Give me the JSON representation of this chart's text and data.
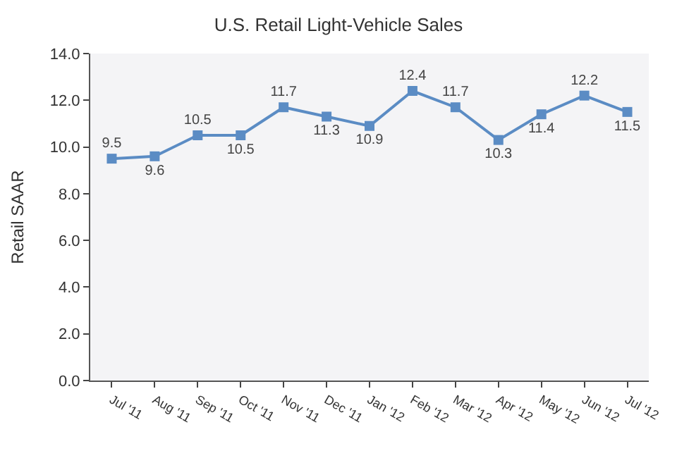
{
  "chart_data": {
    "type": "line",
    "title": "U.S. Retail Light-Vehicle Sales",
    "ylabel": "Retail SAAR",
    "categories": [
      "Jul '11",
      "Aug '11",
      "Sep '11",
      "Oct '11",
      "Nov '11",
      "Dec '11",
      "Jan '12",
      "Feb '12",
      "Mar '12",
      "Apr '12",
      "May '12",
      "Jun '12",
      "Jul '12"
    ],
    "series": [
      {
        "color": "#5b8cc4",
        "values": [
          9.5,
          9.6,
          10.5,
          10.5,
          11.7,
          11.3,
          10.9,
          12.4,
          11.7,
          10.3,
          11.4,
          12.2,
          11.5
        ]
      }
    ],
    "ylim": [
      0,
      14
    ],
    "yticks": [
      {
        "value": 0,
        "label": "0.0"
      },
      {
        "value": 2,
        "label": "2.0"
      },
      {
        "value": 4,
        "label": "4.0"
      },
      {
        "value": 6,
        "label": "6.0"
      },
      {
        "value": 8,
        "label": "8.0"
      },
      {
        "value": 10,
        "label": "10.0"
      },
      {
        "value": 12,
        "label": "12.0"
      },
      {
        "value": 14,
        "label": "14.0"
      }
    ],
    "data_labels": true,
    "marker": "square",
    "line_style": "solid",
    "grid": false
  }
}
